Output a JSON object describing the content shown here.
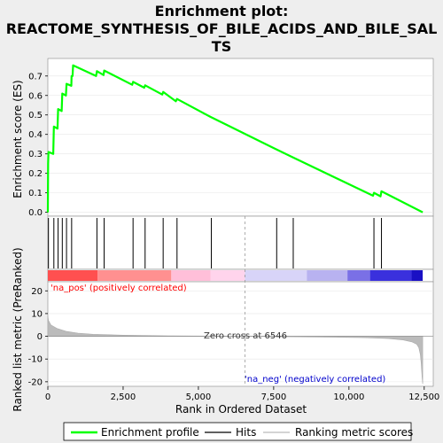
{
  "chart_data": {
    "type": "line",
    "title_lines": [
      "Enrichment plot:",
      "REACTOME_SYNTHESIS_OF_BILE_ACIDS_AND_BILE_SAL",
      "TS"
    ],
    "es_panel": {
      "ylabel": "Enrichment score (ES)",
      "ylim": [
        -0.02,
        0.79
      ],
      "yticks": [
        0.0,
        0.1,
        0.2,
        0.3,
        0.4,
        0.5,
        0.6,
        0.7
      ],
      "series": [
        {
          "name": "Enrichment profile",
          "color": "#00ff00",
          "x": [
            0,
            10,
            20,
            180,
            200,
            320,
            340,
            460,
            480,
            600,
            620,
            780,
            790,
            820,
            840,
            1600,
            1630,
            1850,
            1870,
            2800,
            2830,
            3200,
            3230,
            3800,
            3830,
            4250,
            4290,
            5400,
            7500,
            8100,
            10800,
            10830,
            11050,
            11080,
            12450
          ],
          "y": [
            0.0,
            0.25,
            0.31,
            0.3,
            0.44,
            0.43,
            0.53,
            0.52,
            0.61,
            0.6,
            0.66,
            0.65,
            0.7,
            0.7,
            0.755,
            0.7,
            0.725,
            0.705,
            0.728,
            0.655,
            0.67,
            0.64,
            0.652,
            0.605,
            0.618,
            0.57,
            0.582,
            0.49,
            0.33,
            0.285,
            0.085,
            0.1,
            0.082,
            0.108,
            0.0
          ]
        }
      ]
    },
    "hits": {
      "name": "Hits",
      "x": [
        20,
        200,
        340,
        480,
        620,
        790,
        1630,
        1870,
        2830,
        3230,
        3830,
        4290,
        5430,
        7600,
        8150,
        10830,
        11080
      ]
    },
    "rank_panel": {
      "ylabel": "Ranked list metric (PreRanked)",
      "xlabel": "Rank in Ordered Dataset",
      "ylim": [
        -22,
        24
      ],
      "yticks": [
        -20,
        -10,
        0,
        10,
        20
      ],
      "xlim": [
        0,
        12800
      ],
      "xticks": [
        0,
        2500,
        5000,
        7500,
        10000,
        12500
      ],
      "xtick_labels": [
        "0",
        "2,500",
        "5,000",
        "7,500",
        "10,000",
        "12,500"
      ],
      "series_name": "Ranking metric scores",
      "profile_x": [
        0,
        20,
        100,
        300,
        600,
        1000,
        1500,
        2500,
        4000,
        6546,
        8000,
        9500,
        10500,
        11300,
        11800,
        12100,
        12250,
        12320,
        12370,
        12400,
        12430,
        12450
      ],
      "profile_y": [
        9,
        7,
        5,
        3.5,
        2.2,
        1.4,
        0.9,
        0.5,
        0.2,
        0,
        -0.2,
        -0.4,
        -0.6,
        -1.0,
        -1.6,
        -2.5,
        -3.5,
        -5,
        -8,
        -12,
        -18,
        -21
      ],
      "zero_cross_label": "Zero cross at 6546",
      "zero_cross": 6546,
      "pos_label": "'na_pos' (positively correlated)",
      "neg_label": "'na_neg' (negatively correlated)"
    },
    "colorbar": {
      "segments": [
        {
          "from": 0,
          "to": 1650,
          "color": "#ff5050"
        },
        {
          "from": 1650,
          "to": 4100,
          "color": "#ff9090"
        },
        {
          "from": 4100,
          "to": 5400,
          "color": "#ffbfd9"
        },
        {
          "from": 5400,
          "to": 6546,
          "color": "#ffd4ec"
        },
        {
          "from": 6546,
          "to": 8600,
          "color": "#d8d4f8"
        },
        {
          "from": 8600,
          "to": 9950,
          "color": "#b8b2f0"
        },
        {
          "from": 9950,
          "to": 10700,
          "color": "#7a70e6"
        },
        {
          "from": 10700,
          "to": 12080,
          "color": "#3a30dd"
        },
        {
          "from": 12080,
          "to": 12450,
          "color": "#1a10c4"
        }
      ]
    },
    "legend": [
      {
        "label": "Enrichment profile",
        "color": "#00ff00"
      },
      {
        "label": "Hits",
        "color": "#000000"
      },
      {
        "label": "Ranking metric scores",
        "color": "#bbbbbb"
      }
    ]
  }
}
